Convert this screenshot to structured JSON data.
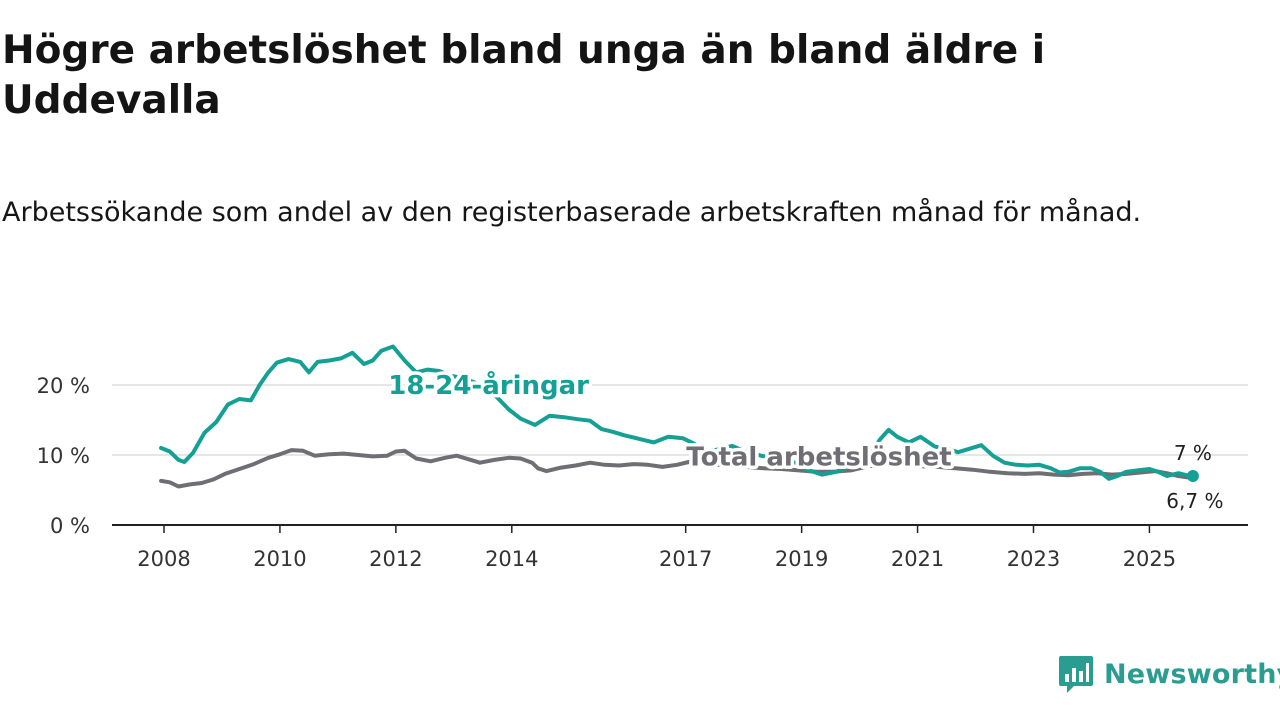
{
  "title": "Högre arbetslöshet bland unga än bland äldre i Uddevalla",
  "subtitle": "Arbetssökande som andel av den registerbaserade arbetskraften månad för månad.",
  "brand": {
    "name": "Newsworthy",
    "color": "#2a9d90"
  },
  "colors": {
    "youth": "#14a094",
    "total": "#6e6e74",
    "grid": "#dddddd",
    "axis": "#222222"
  },
  "chart_data": {
    "type": "line",
    "title": "Högre arbetslöshet bland unga än bland äldre i Uddevalla",
    "xlabel": "",
    "ylabel": "",
    "xlim": [
      2008,
      2026.2
    ],
    "ylim": [
      0,
      30
    ],
    "grid": true,
    "x_ticks": [
      {
        "value": 2008,
        "label": "2008"
      },
      {
        "value": 2010,
        "label": "2010"
      },
      {
        "value": 2012,
        "label": "2012"
      },
      {
        "value": 2014,
        "label": "2014"
      },
      {
        "value": 2017,
        "label": "2017"
      },
      {
        "value": 2019,
        "label": "2019"
      },
      {
        "value": 2021,
        "label": "2021"
      },
      {
        "value": 2023,
        "label": "2023"
      },
      {
        "value": 2025,
        "label": "2025"
      }
    ],
    "y_ticks": [
      {
        "value": 0,
        "label": "0 %"
      },
      {
        "value": 10,
        "label": "10 %"
      },
      {
        "value": 20,
        "label": "20 %"
      }
    ],
    "series": [
      {
        "name": "18-24-åringar",
        "color": "#14a094",
        "points": [
          [
            2007.95,
            11.0
          ],
          [
            2008.1,
            10.5
          ],
          [
            2008.25,
            9.3
          ],
          [
            2008.35,
            9.0
          ],
          [
            2008.5,
            10.3
          ],
          [
            2008.7,
            13.2
          ],
          [
            2008.9,
            14.7
          ],
          [
            2009.1,
            17.2
          ],
          [
            2009.3,
            18.0
          ],
          [
            2009.5,
            17.8
          ],
          [
            2009.65,
            20.0
          ],
          [
            2009.8,
            21.8
          ],
          [
            2009.95,
            23.2
          ],
          [
            2010.15,
            23.7
          ],
          [
            2010.35,
            23.3
          ],
          [
            2010.5,
            21.8
          ],
          [
            2010.65,
            23.3
          ],
          [
            2010.85,
            23.5
          ],
          [
            2011.05,
            23.8
          ],
          [
            2011.25,
            24.6
          ],
          [
            2011.45,
            23.0
          ],
          [
            2011.6,
            23.5
          ],
          [
            2011.75,
            24.9
          ],
          [
            2011.95,
            25.5
          ],
          [
            2012.15,
            23.5
          ],
          [
            2012.35,
            21.8
          ],
          [
            2012.55,
            22.2
          ],
          [
            2012.75,
            22.0
          ],
          [
            2012.95,
            21.3
          ],
          [
            2013.15,
            21.0
          ],
          [
            2013.35,
            20.4
          ],
          [
            2013.55,
            19.5
          ],
          [
            2013.75,
            18.2
          ],
          [
            2013.95,
            16.5
          ],
          [
            2014.15,
            15.2
          ],
          [
            2014.4,
            14.3
          ],
          [
            2014.65,
            15.6
          ],
          [
            2014.9,
            15.4
          ],
          [
            2015.15,
            15.1
          ],
          [
            2015.35,
            14.9
          ],
          [
            2015.55,
            13.7
          ],
          [
            2015.75,
            13.3
          ],
          [
            2015.95,
            12.8
          ],
          [
            2016.2,
            12.3
          ],
          [
            2016.45,
            11.8
          ],
          [
            2016.7,
            12.6
          ],
          [
            2016.95,
            12.4
          ],
          [
            2017.15,
            11.6
          ],
          [
            2017.35,
            10.3
          ],
          [
            2017.55,
            10.8
          ],
          [
            2017.8,
            11.3
          ],
          [
            2018.0,
            10.6
          ],
          [
            2018.3,
            9.9
          ],
          [
            2018.6,
            9.4
          ],
          [
            2018.9,
            8.9
          ],
          [
            2019.1,
            7.9
          ],
          [
            2019.35,
            7.2
          ],
          [
            2019.6,
            7.6
          ],
          [
            2019.85,
            8.6
          ],
          [
            2020.05,
            9.6
          ],
          [
            2020.2,
            10.3
          ],
          [
            2020.35,
            12.2
          ],
          [
            2020.5,
            13.6
          ],
          [
            2020.65,
            12.6
          ],
          [
            2020.85,
            11.8
          ],
          [
            2021.05,
            12.6
          ],
          [
            2021.3,
            11.2
          ],
          [
            2021.5,
            10.9
          ],
          [
            2021.7,
            10.4
          ],
          [
            2021.9,
            10.9
          ],
          [
            2022.1,
            11.4
          ],
          [
            2022.3,
            9.9
          ],
          [
            2022.5,
            8.9
          ],
          [
            2022.7,
            8.6
          ],
          [
            2022.9,
            8.5
          ],
          [
            2023.1,
            8.6
          ],
          [
            2023.3,
            8.1
          ],
          [
            2023.45,
            7.5
          ],
          [
            2023.6,
            7.6
          ],
          [
            2023.8,
            8.1
          ],
          [
            2024.0,
            8.1
          ],
          [
            2024.15,
            7.6
          ],
          [
            2024.3,
            6.6
          ],
          [
            2024.45,
            7.0
          ],
          [
            2024.6,
            7.6
          ],
          [
            2024.8,
            7.8
          ],
          [
            2025.0,
            8.0
          ],
          [
            2025.15,
            7.6
          ],
          [
            2025.3,
            7.0
          ],
          [
            2025.5,
            7.4
          ],
          [
            2025.65,
            7.1
          ],
          [
            2025.75,
            7.0
          ]
        ]
      },
      {
        "name": "Total arbetslöshet",
        "color": "#6e6e74",
        "points": [
          [
            2007.95,
            6.3
          ],
          [
            2008.1,
            6.1
          ],
          [
            2008.25,
            5.5
          ],
          [
            2008.45,
            5.8
          ],
          [
            2008.65,
            6.0
          ],
          [
            2008.85,
            6.5
          ],
          [
            2009.05,
            7.3
          ],
          [
            2009.3,
            8.0
          ],
          [
            2009.55,
            8.7
          ],
          [
            2009.8,
            9.6
          ],
          [
            2010.0,
            10.1
          ],
          [
            2010.2,
            10.7
          ],
          [
            2010.4,
            10.6
          ],
          [
            2010.6,
            9.9
          ],
          [
            2010.85,
            10.1
          ],
          [
            2011.1,
            10.2
          ],
          [
            2011.35,
            10.0
          ],
          [
            2011.6,
            9.8
          ],
          [
            2011.85,
            9.9
          ],
          [
            2012.0,
            10.5
          ],
          [
            2012.15,
            10.6
          ],
          [
            2012.35,
            9.5
          ],
          [
            2012.6,
            9.1
          ],
          [
            2012.85,
            9.6
          ],
          [
            2013.05,
            9.9
          ],
          [
            2013.25,
            9.4
          ],
          [
            2013.45,
            8.9
          ],
          [
            2013.7,
            9.3
          ],
          [
            2013.95,
            9.6
          ],
          [
            2014.15,
            9.5
          ],
          [
            2014.35,
            8.9
          ],
          [
            2014.45,
            8.1
          ],
          [
            2014.6,
            7.7
          ],
          [
            2014.85,
            8.2
          ],
          [
            2015.1,
            8.5
          ],
          [
            2015.35,
            8.9
          ],
          [
            2015.6,
            8.6
          ],
          [
            2015.85,
            8.5
          ],
          [
            2016.1,
            8.7
          ],
          [
            2016.35,
            8.6
          ],
          [
            2016.6,
            8.3
          ],
          [
            2016.85,
            8.6
          ],
          [
            2017.05,
            9.0
          ],
          [
            2017.3,
            8.9
          ],
          [
            2017.55,
            8.6
          ],
          [
            2017.8,
            8.5
          ],
          [
            2018.05,
            8.3
          ],
          [
            2018.35,
            8.1
          ],
          [
            2018.65,
            8.0
          ],
          [
            2018.95,
            7.8
          ],
          [
            2019.25,
            7.6
          ],
          [
            2019.55,
            7.6
          ],
          [
            2019.85,
            7.8
          ],
          [
            2020.15,
            8.4
          ],
          [
            2020.45,
            8.6
          ],
          [
            2020.75,
            8.5
          ],
          [
            2021.05,
            8.4
          ],
          [
            2021.35,
            8.3
          ],
          [
            2021.65,
            8.1
          ],
          [
            2021.95,
            7.9
          ],
          [
            2022.25,
            7.6
          ],
          [
            2022.55,
            7.4
          ],
          [
            2022.85,
            7.3
          ],
          [
            2023.1,
            7.4
          ],
          [
            2023.35,
            7.2
          ],
          [
            2023.6,
            7.1
          ],
          [
            2023.85,
            7.3
          ],
          [
            2024.1,
            7.4
          ],
          [
            2024.35,
            7.2
          ],
          [
            2024.6,
            7.3
          ],
          [
            2024.85,
            7.5
          ],
          [
            2025.1,
            7.7
          ],
          [
            2025.3,
            7.4
          ],
          [
            2025.5,
            7.0
          ],
          [
            2025.75,
            6.7
          ]
        ]
      }
    ],
    "annotations": [
      {
        "series": "18-24-åringar",
        "text": "18-24-åringar",
        "x": 2013.6,
        "y": 18.7
      },
      {
        "series": "Total arbetslöshet",
        "text": "Total arbetslöshet",
        "x": 2019.3,
        "y": 8.5
      }
    ],
    "end_labels": [
      {
        "series": "18-24-åringar",
        "text": "7 %"
      },
      {
        "series": "Total arbetslöshet",
        "text": "6,7 %"
      }
    ]
  }
}
